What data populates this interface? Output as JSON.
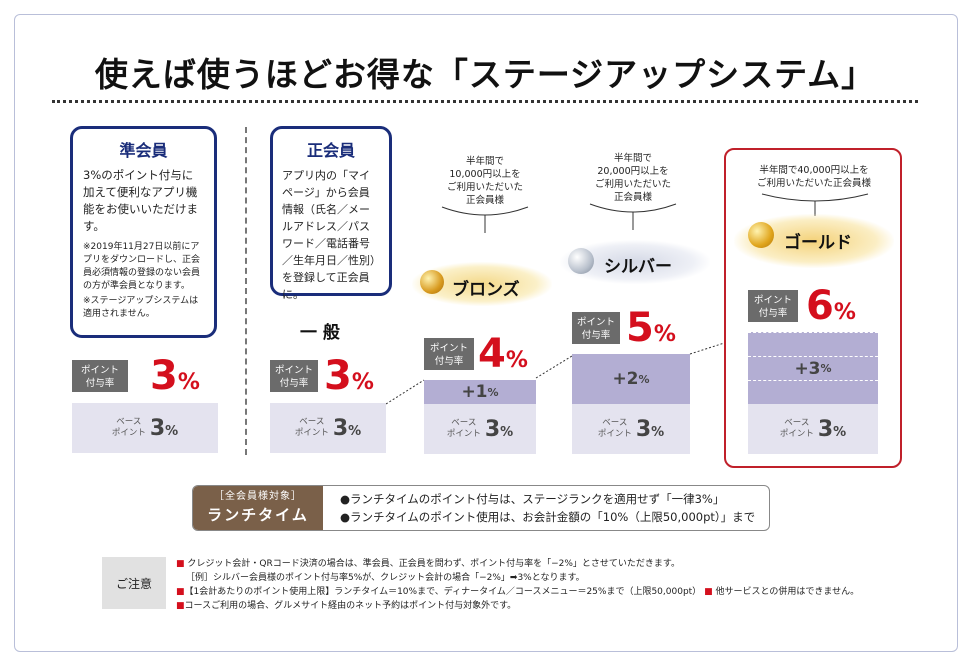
{
  "title": "使えば使うほどお得な「ステージアップシステム」",
  "associate": {
    "heading": "準会員",
    "body": "3%のポイント付与に加えて便利なアプリ機能をお使いいただけます。",
    "note1": "※2019年11月27日以前にアプリをダウンロードし、正会員必須情報の登録のない会員の方が準会員となります。",
    "note2": "※ステージアップシステムは適用されません。"
  },
  "regular": {
    "heading": "正会員",
    "body": "アプリ内の「マイページ」から会員情報（氏名／メールアドレス／パスワード／電話番号／生年月日／性別）を登録して正会員に。",
    "tier_label": "一 般"
  },
  "rate_label_line1": "ポイント",
  "rate_label_line2": "付与率",
  "base_label_line1": "ベース",
  "base_label_line2": "ポイント",
  "pct_sign": "%",
  "base_value": "3",
  "tiers": {
    "associate": {
      "rate": "3"
    },
    "general": {
      "rate": "3"
    },
    "bronze": {
      "name": "ブロンズ",
      "req_line1": "半年間で",
      "req_line2": "10,000円以上を",
      "req_line3": "ご利用いただいた",
      "req_line4": "正会員様",
      "rate": "4",
      "plus": "+1"
    },
    "silver": {
      "name": "シルバー",
      "req_line1": "半年間で",
      "req_line2": "20,000円以上を",
      "req_line3": "ご利用いただいた",
      "req_line4": "正会員様",
      "rate": "5",
      "plus": "+2"
    },
    "gold": {
      "name": "ゴールド",
      "req_line1": "半年間で40,000円以上を",
      "req_line2": "ご利用いただいた正会員様",
      "rate": "6",
      "plus": "+3"
    }
  },
  "lunch": {
    "tag_small": "［全会員様対象］",
    "tag_large": "ランチタイム",
    "item1": "●ランチタイムのポイント付与は、ステージランクを適用せず「一律3%」",
    "item2": "●ランチタイムのポイント使用は、お会計金額の「10%（上限50,000pt）」まで"
  },
  "caution": {
    "label": "ご注意",
    "line1": "クレジット会計・QRコード決済の場合は、準会員、正会員を問わず、ポイント付与率を「−2%」とさせていただきます。",
    "line2": "［例］シルバー会員様のポイント付与率5%が、クレジット会計の場合「−2%」➡3%となります。",
    "line3a": "【1会計あたりのポイント使用上限】ランチタイム＝10%まで、ディナータイム／コースメニュー＝25%まで（上限50,000pt）",
    "line3b": "他サービスとの併用はできません。",
    "line4": "コースご利用の場合、グルメサイト経由のネット予約はポイント付与対象外です。",
    "bullet": "■"
  },
  "colors": {
    "navy": "#1a2d7a",
    "red": "#d40f1d",
    "base_fill": "#e4e3ef",
    "plus_fill": "#b3aed3",
    "lunch_brown": "#7a6049"
  }
}
